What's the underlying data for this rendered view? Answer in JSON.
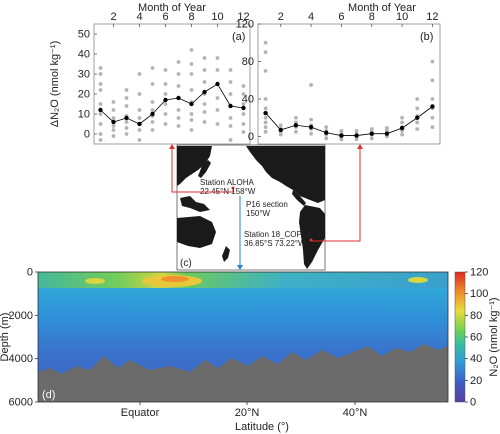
{
  "chart_data": [
    {
      "panel": "(a)",
      "type": "scatter",
      "top_axis_label": "Month of Year",
      "ylabel": "ΔN₂O (nmol kg⁻¹)",
      "x_ticks": [
        2,
        4,
        6,
        8,
        10,
        12
      ],
      "y_ticks": [
        0,
        10,
        20,
        30,
        40,
        50
      ],
      "xlim": [
        0.5,
        12.5
      ],
      "ylim": [
        -5,
        55
      ],
      "mean_x": [
        1,
        2,
        3,
        4,
        5,
        6,
        7,
        8,
        9,
        10,
        11,
        12
      ],
      "mean_y": [
        12,
        6,
        8,
        5,
        10,
        17,
        18,
        15,
        21,
        25,
        14,
        13
      ],
      "scatter_points": [
        [
          1,
          -3
        ],
        [
          1,
          0
        ],
        [
          1,
          5
        ],
        [
          1,
          10
        ],
        [
          1,
          15
        ],
        [
          1,
          22
        ],
        [
          1,
          25
        ],
        [
          1,
          30
        ],
        [
          1,
          33
        ],
        [
          2,
          -1
        ],
        [
          2,
          2
        ],
        [
          2,
          4
        ],
        [
          2,
          8
        ],
        [
          2,
          12
        ],
        [
          2,
          16
        ],
        [
          3,
          0
        ],
        [
          3,
          3
        ],
        [
          3,
          6
        ],
        [
          3,
          9
        ],
        [
          3,
          14
        ],
        [
          3,
          18
        ],
        [
          3,
          22
        ],
        [
          4,
          -3
        ],
        [
          4,
          2
        ],
        [
          4,
          5
        ],
        [
          4,
          8
        ],
        [
          4,
          12
        ],
        [
          4,
          20
        ],
        [
          4,
          30
        ],
        [
          5,
          2
        ],
        [
          5,
          6
        ],
        [
          5,
          9
        ],
        [
          5,
          12
        ],
        [
          5,
          16
        ],
        [
          5,
          25
        ],
        [
          5,
          33
        ],
        [
          6,
          5
        ],
        [
          6,
          10
        ],
        [
          6,
          15
        ],
        [
          6,
          20
        ],
        [
          6,
          25
        ],
        [
          6,
          32
        ],
        [
          7,
          4
        ],
        [
          7,
          8
        ],
        [
          7,
          12
        ],
        [
          7,
          18
        ],
        [
          7,
          24
        ],
        [
          7,
          30
        ],
        [
          7,
          36
        ],
        [
          8,
          2
        ],
        [
          8,
          7
        ],
        [
          8,
          10
        ],
        [
          8,
          16
        ],
        [
          8,
          22
        ],
        [
          8,
          30
        ],
        [
          8,
          35
        ],
        [
          8,
          42
        ],
        [
          9,
          6
        ],
        [
          9,
          11
        ],
        [
          9,
          15
        ],
        [
          9,
          20
        ],
        [
          9,
          26
        ],
        [
          9,
          32
        ],
        [
          9,
          38
        ],
        [
          10,
          5
        ],
        [
          10,
          12
        ],
        [
          10,
          18
        ],
        [
          10,
          25
        ],
        [
          10,
          32
        ],
        [
          10,
          38
        ],
        [
          11,
          -3
        ],
        [
          11,
          4
        ],
        [
          11,
          8
        ],
        [
          11,
          14
        ],
        [
          11,
          20
        ],
        [
          11,
          26
        ],
        [
          11,
          32
        ],
        [
          12,
          1
        ],
        [
          12,
          5
        ],
        [
          12,
          10
        ],
        [
          12,
          15
        ],
        [
          12,
          20
        ],
        [
          12,
          24
        ]
      ]
    },
    {
      "panel": "(b)",
      "type": "scatter",
      "top_axis_label": "Month of Year",
      "x_ticks": [
        2,
        4,
        6,
        8,
        10,
        12
      ],
      "y_ticks": [
        0,
        40,
        80,
        120
      ],
      "xlim": [
        0.5,
        12.5
      ],
      "ylim": [
        -8,
        120
      ],
      "mean_x": [
        1,
        2,
        3,
        4,
        5,
        6,
        7,
        8,
        9,
        10,
        11,
        12
      ],
      "mean_y": [
        25,
        7,
        12,
        10,
        4,
        1,
        1,
        3,
        3,
        9,
        20,
        32
      ],
      "scatter_points": [
        [
          1,
          5
        ],
        [
          1,
          10
        ],
        [
          1,
          15
        ],
        [
          1,
          20
        ],
        [
          1,
          30
        ],
        [
          1,
          40
        ],
        [
          1,
          70
        ],
        [
          1,
          90
        ],
        [
          1,
          100
        ],
        [
          2,
          2
        ],
        [
          2,
          5
        ],
        [
          2,
          8
        ],
        [
          2,
          12
        ],
        [
          3,
          5
        ],
        [
          3,
          10
        ],
        [
          3,
          15
        ],
        [
          3,
          20
        ],
        [
          4,
          3
        ],
        [
          4,
          8
        ],
        [
          4,
          12
        ],
        [
          4,
          18
        ],
        [
          4,
          55
        ],
        [
          5,
          -2
        ],
        [
          5,
          2
        ],
        [
          5,
          6
        ],
        [
          5,
          10
        ],
        [
          6,
          -3
        ],
        [
          6,
          0
        ],
        [
          6,
          3
        ],
        [
          6,
          6
        ],
        [
          7,
          -3
        ],
        [
          7,
          0
        ],
        [
          7,
          3
        ],
        [
          7,
          6
        ],
        [
          8,
          -2
        ],
        [
          8,
          2
        ],
        [
          8,
          5
        ],
        [
          8,
          8
        ],
        [
          9,
          0
        ],
        [
          9,
          3
        ],
        [
          9,
          6
        ],
        [
          9,
          9
        ],
        [
          10,
          2
        ],
        [
          10,
          6
        ],
        [
          10,
          10
        ],
        [
          10,
          15
        ],
        [
          10,
          20
        ],
        [
          11,
          8
        ],
        [
          11,
          15
        ],
        [
          11,
          22
        ],
        [
          11,
          30
        ],
        [
          11,
          40
        ],
        [
          12,
          10
        ],
        [
          12,
          20
        ],
        [
          12,
          30
        ],
        [
          12,
          40
        ],
        [
          12,
          60
        ],
        [
          12,
          80
        ]
      ]
    },
    {
      "panel": "(d)",
      "type": "heatmap",
      "ylabel": "Depth (m)",
      "xlabel": "Latitude (°)",
      "x_tick_labels": [
        "Equator",
        "20°N",
        "40°N"
      ],
      "y_ticks": [
        0,
        2000,
        4000,
        6000
      ],
      "ylim": [
        6000,
        0
      ],
      "colorbar_label": "N₂O (nmol kg⁻¹)",
      "colorbar_ticks": [
        0,
        20,
        40,
        60,
        80,
        100,
        120
      ],
      "colorbar_range": [
        0,
        120
      ]
    }
  ],
  "map": {
    "panel_label": "(c)",
    "station_aloha": [
      "Station ALOHA",
      "22.45°N 158°W"
    ],
    "p16_section": [
      "P16 section",
      "150°W"
    ],
    "station_copas": [
      "Station 18_COPAS",
      "36.85°S 73.22°W"
    ]
  },
  "colors": {
    "scatter_gray": "#b3b3b3",
    "mean_black": "#000000",
    "connector_red": "#e03030",
    "section_blue": "#2a7fd4",
    "land_dark": "#1a1a1a"
  }
}
